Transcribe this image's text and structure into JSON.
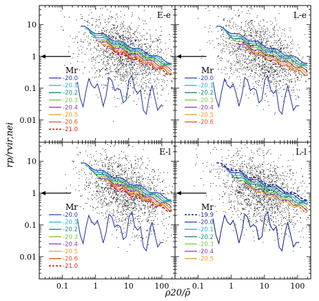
{
  "colors": {
    "-19.9": "#1a2a8c",
    "-20.0": "#2e3fa8",
    "-20.1": "#27b3d3",
    "-20.2": "#1d8a7a",
    "-20.3": "#7ac943",
    "-20.4": "#8e3aa6",
    "-20.5": "#f09a1e",
    "-20.6": "#e0531f",
    "-21.0": "#d32020"
  },
  "chart_data": {
    "type": "contour",
    "axes": {
      "xlabel": "ρ20/ρ̄",
      "ylabel": "rp/rvir,nei",
      "xscale": "log",
      "yscale": "log",
      "xlim": [
        0.02,
        250
      ],
      "ylim": [
        0.002,
        40
      ],
      "xticks": [
        "0.1",
        "1",
        "10",
        "100"
      ],
      "yticks": [
        "10",
        "1",
        "0.1",
        "0.01"
      ]
    },
    "legend_title": "Mr",
    "panels": [
      {
        "title": "E-e",
        "series": [
          "-20.0",
          "-20.1",
          "-20.2",
          "-20.3",
          "-20.4",
          "-20.5",
          "-20.6",
          "-21.0"
        ],
        "dashed": [
          "-21.0"
        ],
        "arrow_y": 1
      },
      {
        "title": "L-e",
        "series": [
          "-20.0",
          "-20.1",
          "-20.2",
          "-20.3",
          "-20.4",
          "-20.5",
          "-20.6"
        ],
        "dashed": [],
        "arrow_y": 1
      },
      {
        "title": "E-l",
        "series": [
          "-20.0",
          "-20.1",
          "-20.2",
          "-20.3",
          "-20.4",
          "-20.5",
          "-20.6",
          "-21.0"
        ],
        "dashed": [
          "-21.0"
        ],
        "arrow_y": 1
      },
      {
        "title": "L-l",
        "series": [
          "-19.9",
          "-20.0",
          "-20.1",
          "-20.2",
          "-20.3",
          "-20.4",
          "-20.5"
        ],
        "dashed": [
          "-19.9"
        ],
        "arrow_y": 1
      }
    ]
  }
}
